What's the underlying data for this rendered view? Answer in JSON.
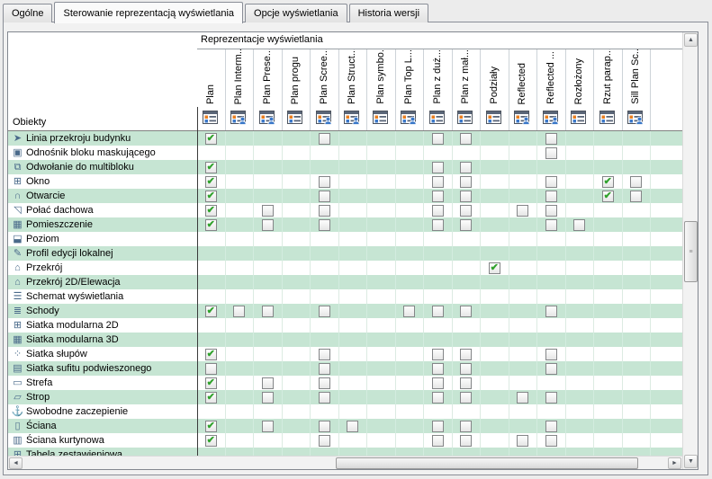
{
  "tabs": [
    {
      "label": "Ogólne",
      "active": false
    },
    {
      "label": "Sterowanie reprezentacją wyświetlania",
      "active": true
    },
    {
      "label": "Opcje wyświetlania",
      "active": false
    },
    {
      "label": "Historia wersji",
      "active": false
    }
  ],
  "panel": {
    "group_header": "Reprezentacje wyświetlania",
    "objects_header": "Obiekty",
    "columns": [
      {
        "label": "Plan",
        "icon": "display-rep-icon"
      },
      {
        "label": "Plan Interm...",
        "icon": "display-rep-user-icon"
      },
      {
        "label": "Plan Prese...",
        "icon": "display-rep-user-icon"
      },
      {
        "label": "Plan progu",
        "icon": "display-rep-icon"
      },
      {
        "label": "Plan Scree...",
        "icon": "display-rep-user-icon"
      },
      {
        "label": "Plan Struct...",
        "icon": "display-rep-user-icon"
      },
      {
        "label": "Plan symbo...",
        "icon": "display-rep-icon"
      },
      {
        "label": "Plan Top L...",
        "icon": "display-rep-user-icon"
      },
      {
        "label": "Plan z duż...",
        "icon": "display-rep-icon"
      },
      {
        "label": "Plan z mał...",
        "icon": "display-rep-icon"
      },
      {
        "label": "Podziały",
        "icon": "display-rep-icon"
      },
      {
        "label": "Reflected",
        "icon": "display-rep-user-icon"
      },
      {
        "label": "Reflected ...",
        "icon": "display-rep-user-icon"
      },
      {
        "label": "Rozłożony",
        "icon": "display-rep-icon"
      },
      {
        "label": "Rzut parap...",
        "icon": "display-rep-icon"
      },
      {
        "label": "Sill Plan Sc...",
        "icon": "display-rep-user-icon"
      }
    ],
    "rows": [
      {
        "label": "Linia przekroju budynku",
        "icon": "building-section-line-icon",
        "glyph": "➤",
        "cells": {
          "0": "checked",
          "4": "unchecked",
          "8": "unchecked",
          "9": "unchecked",
          "12": "unchecked"
        }
      },
      {
        "label": "Odnośnik bloku maskującego",
        "icon": "mask-block-reference-icon",
        "glyph": "▣",
        "cells": {
          "12": "unchecked"
        }
      },
      {
        "label": "Odwołanie do multibloku",
        "icon": "multiblock-reference-icon",
        "glyph": "⧉",
        "cells": {
          "0": "checked",
          "8": "unchecked",
          "9": "unchecked"
        }
      },
      {
        "label": "Okno",
        "icon": "window-icon",
        "glyph": "⊞",
        "cells": {
          "0": "checked",
          "4": "unchecked",
          "8": "unchecked",
          "9": "unchecked",
          "12": "unchecked",
          "14": "checked",
          "15": "unchecked"
        }
      },
      {
        "label": "Otwarcie",
        "icon": "opening-icon",
        "glyph": "∩",
        "cells": {
          "0": "checked",
          "4": "unchecked",
          "8": "unchecked",
          "9": "unchecked",
          "12": "unchecked",
          "14": "checked",
          "15": "unchecked"
        }
      },
      {
        "label": "Połać dachowa",
        "icon": "roof-slab-icon",
        "glyph": "◹",
        "cells": {
          "0": "checked",
          "2": "unchecked",
          "4": "unchecked",
          "8": "unchecked",
          "9": "unchecked",
          "11": "unchecked",
          "12": "unchecked"
        }
      },
      {
        "label": "Pomieszczenie",
        "icon": "space-icon",
        "glyph": "▦",
        "cells": {
          "0": "checked",
          "2": "unchecked",
          "4": "unchecked",
          "8": "unchecked",
          "9": "unchecked",
          "12": "unchecked",
          "13": "unchecked"
        }
      },
      {
        "label": "Poziom",
        "icon": "level-icon",
        "glyph": "⬓",
        "cells": {}
      },
      {
        "label": "Profil edycji lokalnej",
        "icon": "edit-profile-icon",
        "glyph": "✎",
        "cells": {}
      },
      {
        "label": "Przekrój",
        "icon": "section-icon",
        "glyph": "⌂",
        "cells": {
          "10": "checked"
        }
      },
      {
        "label": "Przekrój 2D/Elewacja",
        "icon": "section-2d-elevation-icon",
        "glyph": "⌂",
        "cells": {}
      },
      {
        "label": "Schemat wyświetlania",
        "icon": "display-theme-icon",
        "glyph": "☰",
        "cells": {}
      },
      {
        "label": "Schody",
        "icon": "stairs-icon",
        "glyph": "≣",
        "cells": {
          "0": "checked",
          "1": "unchecked",
          "2": "unchecked",
          "4": "unchecked",
          "7": "unchecked",
          "8": "unchecked",
          "9": "unchecked",
          "12": "unchecked"
        }
      },
      {
        "label": "Siatka modularna 2D",
        "icon": "modular-grid-2d-icon",
        "glyph": "⊞",
        "cells": {}
      },
      {
        "label": "Siatka modularna 3D",
        "icon": "modular-grid-3d-icon",
        "glyph": "▦",
        "cells": {}
      },
      {
        "label": "Siatka słupów",
        "icon": "column-grid-icon",
        "glyph": "⁘",
        "cells": {
          "0": "checked",
          "4": "unchecked",
          "8": "unchecked",
          "9": "unchecked",
          "12": "unchecked"
        }
      },
      {
        "label": "Siatka sufitu podwieszonego",
        "icon": "ceiling-grid-icon",
        "glyph": "▤",
        "cells": {
          "0": "unchecked",
          "4": "unchecked",
          "8": "unchecked",
          "9": "unchecked",
          "12": "unchecked"
        }
      },
      {
        "label": "Strefa",
        "icon": "zone-icon",
        "glyph": "▭",
        "cells": {
          "0": "checked",
          "2": "unchecked",
          "4": "unchecked",
          "8": "unchecked",
          "9": "unchecked"
        }
      },
      {
        "label": "Strop",
        "icon": "slab-icon",
        "glyph": "▱",
        "cells": {
          "0": "checked",
          "2": "unchecked",
          "4": "unchecked",
          "8": "unchecked",
          "9": "unchecked",
          "11": "unchecked",
          "12": "unchecked"
        }
      },
      {
        "label": "Swobodne zaczepienie",
        "icon": "anchor-free-icon",
        "glyph": "⚓",
        "cells": {}
      },
      {
        "label": "Ściana",
        "icon": "wall-icon",
        "glyph": "▯",
        "cells": {
          "0": "checked",
          "2": "unchecked",
          "4": "unchecked",
          "5": "unchecked",
          "8": "unchecked",
          "9": "unchecked",
          "12": "unchecked"
        }
      },
      {
        "label": "Ściana kurtynowa",
        "icon": "curtain-wall-icon",
        "glyph": "▥",
        "cells": {
          "0": "checked",
          "4": "unchecked",
          "8": "unchecked",
          "9": "unchecked",
          "11": "unchecked",
          "12": "unchecked"
        }
      },
      {
        "label": "Tabela zestawieniowa",
        "icon": "schedule-table-icon",
        "glyph": "⊞",
        "cells": {}
      }
    ]
  },
  "scrollbars": {
    "up_arrow": "▲",
    "down_arrow": "▼",
    "left_arrow": "◄",
    "right_arrow": "►",
    "grip": "≡"
  },
  "colors": {
    "row_highlight": "#c6e5d3",
    "check_green": "#2fa12b",
    "icon_orange": "#e87d1e",
    "icon_blue": "#3b78c8"
  }
}
